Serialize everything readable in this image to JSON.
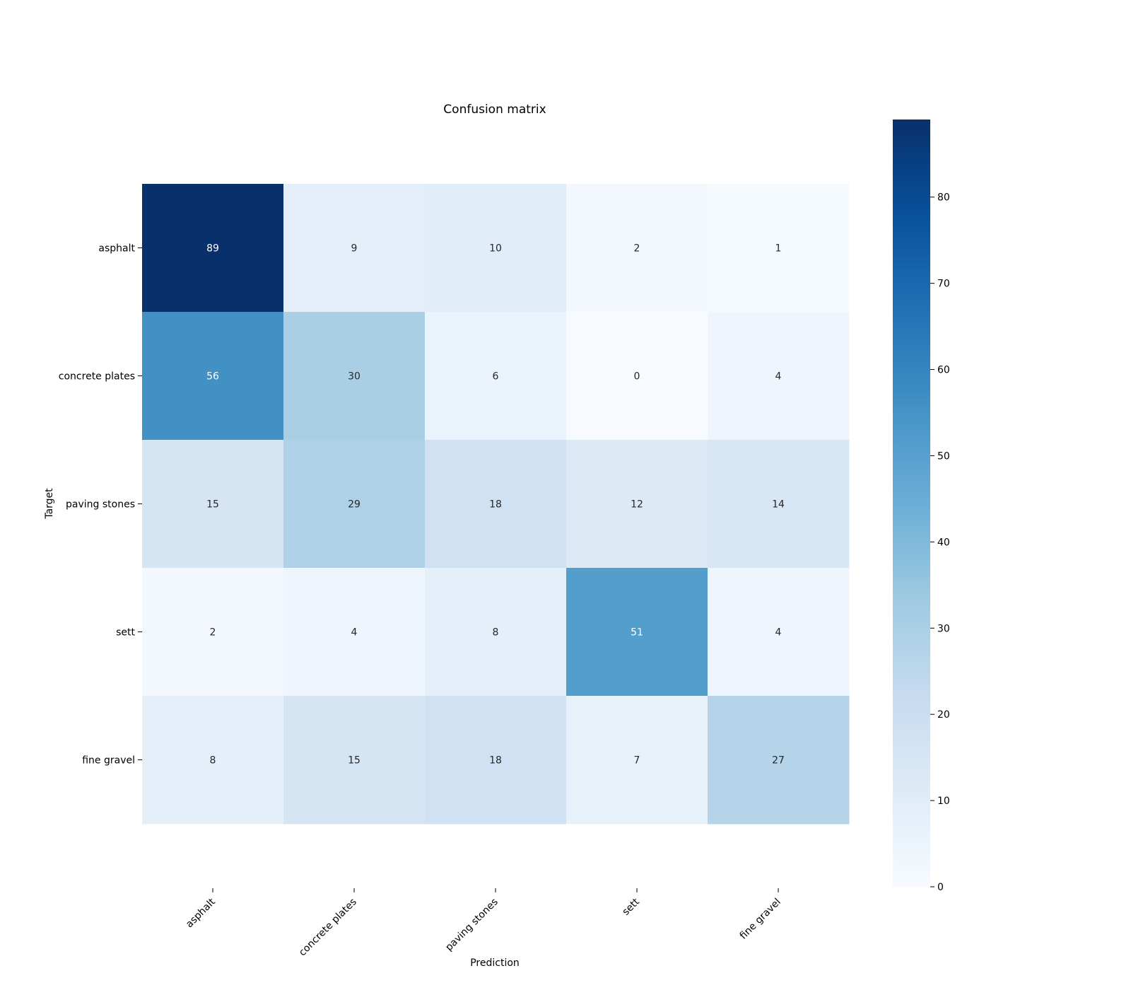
{
  "chart_data": {
    "type": "heatmap",
    "title": "Confusion matrix",
    "xlabel": "Prediction",
    "ylabel": "Target",
    "x_categories": [
      "asphalt",
      "concrete plates",
      "paving stones",
      "sett",
      "fine gravel"
    ],
    "y_categories": [
      "asphalt",
      "concrete plates",
      "paving stones",
      "sett",
      "fine gravel"
    ],
    "values": [
      [
        89,
        9,
        10,
        2,
        1
      ],
      [
        56,
        30,
        6,
        0,
        4
      ],
      [
        15,
        29,
        18,
        12,
        14
      ],
      [
        2,
        4,
        8,
        51,
        4
      ],
      [
        8,
        15,
        18,
        7,
        27
      ]
    ],
    "colorbar": {
      "min": 0,
      "max": 89,
      "ticks": [
        0,
        10,
        20,
        30,
        40,
        50,
        60,
        70,
        80
      ],
      "colormap": "Blues",
      "colors": [
        "#f7fbff",
        "#deebf7",
        "#c6dbef",
        "#9ecae1",
        "#6baed6",
        "#4292c6",
        "#2171b5",
        "#08519c",
        "#08306b"
      ]
    }
  }
}
